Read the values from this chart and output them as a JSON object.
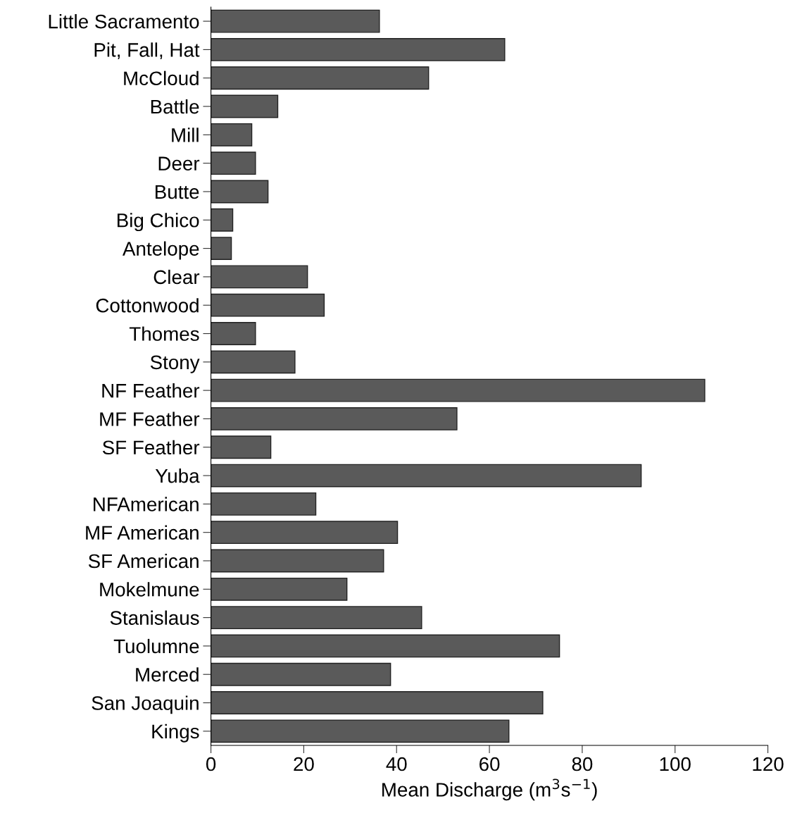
{
  "chart_data": {
    "type": "bar",
    "orientation": "horizontal",
    "xlabel": "Mean Discharge (m$^{3}$s$^{−1}$)",
    "categories": [
      "Little Sacramento",
      "Pit, Fall, Hat",
      "McCloud",
      "Battle",
      "Mill",
      "Deer",
      "Butte",
      "Big Chico",
      "Antelope",
      "Clear",
      "Cottonwood",
      "Thomes",
      "Stony",
      "NF Feather",
      "MF Feather",
      "SF Feather",
      "Yuba",
      "NFAmerican",
      "MF American",
      "SF American",
      "Mokelmune",
      "Stanislaus",
      "Tuolumne",
      "Merced",
      "San Joaquin",
      "Kings"
    ],
    "values": [
      36.3,
      63.3,
      46.9,
      14.4,
      8.8,
      9.6,
      12.3,
      4.7,
      4.4,
      20.8,
      24.4,
      9.6,
      18.1,
      106.4,
      53.0,
      12.9,
      92.7,
      22.6,
      40.2,
      37.2,
      29.3,
      45.4,
      75.1,
      38.7,
      71.5,
      64.2
    ],
    "color": "#5a5a5a",
    "xlim": [
      0,
      120
    ],
    "xticks": [
      0,
      20,
      40,
      60,
      80,
      100,
      120
    ],
    "grid": false,
    "legend": false
  }
}
